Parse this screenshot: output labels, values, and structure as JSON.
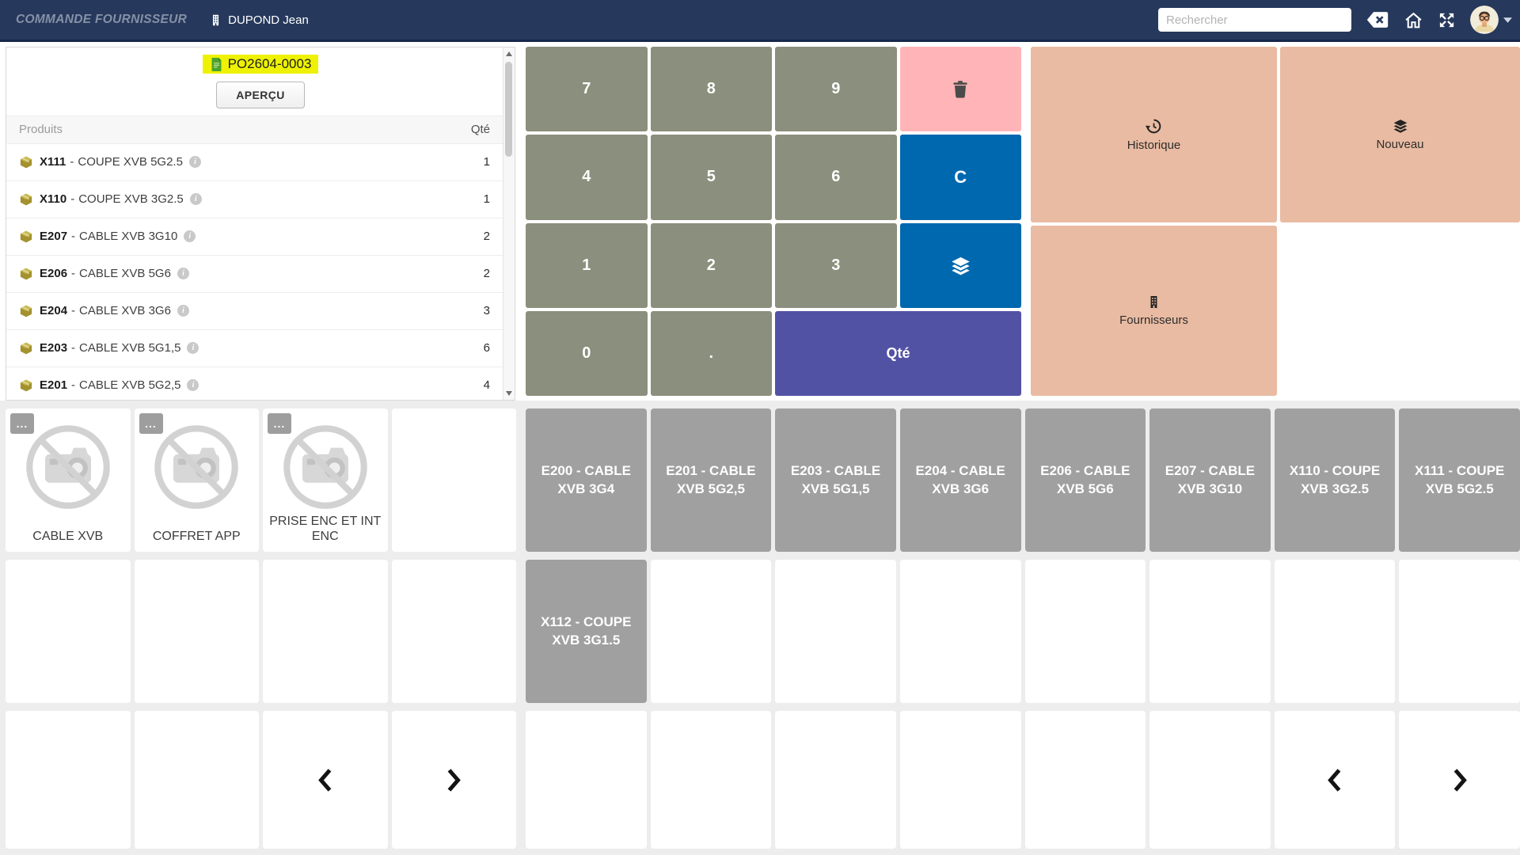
{
  "colors": {
    "navbar_bg": "#26395c",
    "navbar_border": "#16284a",
    "app_title": "#8591a6",
    "key_number_bg": "#8b8f7d",
    "key_delete_bg": "#ffb5b7",
    "key_blue_bg": "#0068ae",
    "key_qty_bg": "#5252a5",
    "action_tile_bg": "#e9bba2",
    "product_tile_bg": "#a0a0a0",
    "order_highlight": "#eef202",
    "section_bg": "#ededed",
    "package_icon": "#a3922f",
    "document_icon": "#4aa32f"
  },
  "navbar": {
    "app_title": "COMMANDE FOURNISSEUR",
    "user_name": "DUPOND Jean",
    "search_placeholder": "Rechercher"
  },
  "order_panel": {
    "order_number": "PO2604-0003",
    "preview_label": "APERÇU",
    "product_column": "Produits",
    "qty_column": "Qté",
    "separator": "-",
    "rows": [
      {
        "code": "X111",
        "name": "COUPE XVB 5G2.5",
        "qty": "1"
      },
      {
        "code": "X110",
        "name": "COUPE XVB 3G2.5",
        "qty": "1"
      },
      {
        "code": "E207",
        "name": "CABLE XVB 3G10",
        "qty": "2"
      },
      {
        "code": "E206",
        "name": "CABLE XVB 5G6",
        "qty": "2"
      },
      {
        "code": "E204",
        "name": "CABLE XVB 3G6",
        "qty": "3"
      },
      {
        "code": "E203",
        "name": "CABLE XVB 5G1,5",
        "qty": "6"
      },
      {
        "code": "E201",
        "name": "CABLE XVB 5G2,5",
        "qty": "4"
      }
    ]
  },
  "keypad": {
    "keys": [
      {
        "label": "7",
        "kind": "num",
        "name": "7"
      },
      {
        "label": "8",
        "kind": "num",
        "name": "8"
      },
      {
        "label": "9",
        "kind": "num",
        "name": "9"
      },
      {
        "icon": "trash",
        "kind": "delete",
        "name": "delete"
      },
      {
        "label": "4",
        "kind": "num",
        "name": "4"
      },
      {
        "label": "5",
        "kind": "num",
        "name": "5"
      },
      {
        "label": "6",
        "kind": "num",
        "name": "6"
      },
      {
        "label": "C",
        "kind": "clear",
        "name": "clear"
      },
      {
        "label": "1",
        "kind": "num",
        "name": "1"
      },
      {
        "label": "2",
        "kind": "num",
        "name": "2"
      },
      {
        "label": "3",
        "kind": "num",
        "name": "3"
      },
      {
        "icon": "layers",
        "kind": "stack",
        "name": "stack"
      },
      {
        "label": "0",
        "kind": "num",
        "name": "0"
      },
      {
        "label": ".",
        "kind": "num",
        "name": "decimal"
      },
      {
        "label": "Qté",
        "kind": "qty",
        "name": "qty",
        "span": 2
      }
    ]
  },
  "actions": [
    {
      "label": "Historique",
      "icon": "history"
    },
    {
      "label": "Nouveau",
      "icon": "layers"
    },
    {
      "label": "Fournisseurs",
      "icon": "building"
    }
  ],
  "categories": {
    "more_label": "...",
    "items": [
      "CABLE XVB",
      "COFFRET APP",
      "PRISE ENC ET INT ENC"
    ]
  },
  "product_tiles": [
    "E200 - CABLE XVB 3G4",
    "E201 - CABLE XVB 5G2,5",
    "E203 - CABLE XVB 5G1,5",
    "E204 - CABLE XVB 3G6",
    "E206 - CABLE XVB 5G6",
    "E207 - CABLE XVB 3G10",
    "X110 - COUPE XVB 3G2.5",
    "X111 - COUPE XVB 5G2.5",
    "X112 - COUPE XVB 3G1.5"
  ]
}
